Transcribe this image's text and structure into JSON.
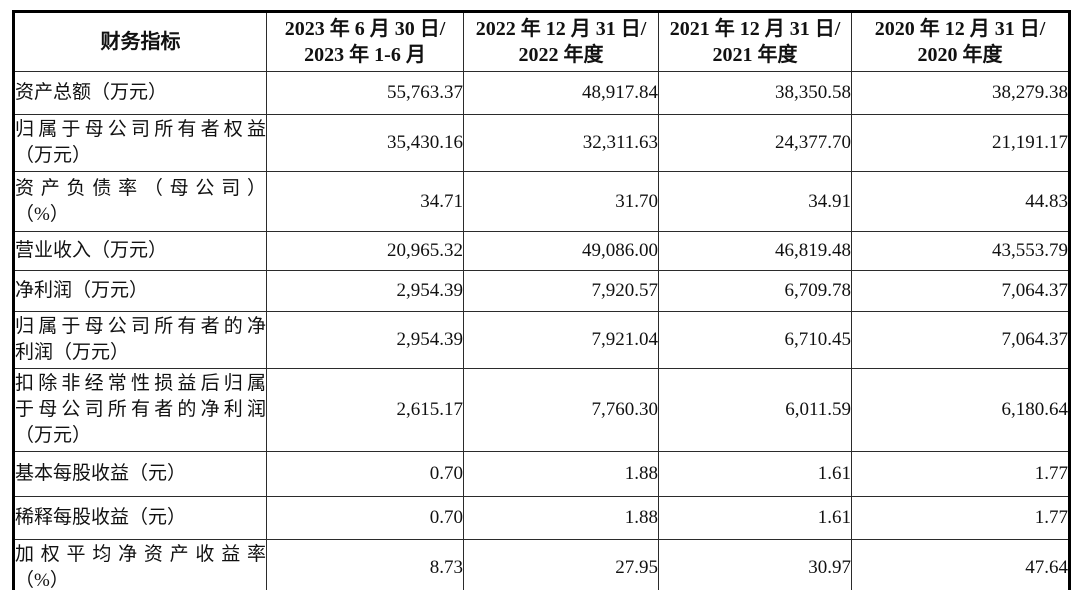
{
  "table": {
    "header": {
      "indicator_label": "财务指标",
      "periods": [
        {
          "line1": "2023 年 6 月 30 日/",
          "line2": "2023 年 1-6 月"
        },
        {
          "line1": "2022 年 12 月 31 日/",
          "line2": "2022 年度"
        },
        {
          "line1": "2021 年 12 月 31 日/",
          "line2": "2021 年度"
        },
        {
          "line1": "2020 年 12 月 31 日/",
          "line2": "2020 年度"
        }
      ]
    },
    "rows": [
      {
        "label_lines": [
          "资产总额（万元）"
        ],
        "values": [
          "55,763.37",
          "48,917.84",
          "38,350.58",
          "38,279.38"
        ]
      },
      {
        "label_lines": [
          "归属于母公司所有者权益",
          "（万元）"
        ],
        "values": [
          "35,430.16",
          "32,311.63",
          "24,377.70",
          "21,191.17"
        ]
      },
      {
        "label_lines": [
          "资产负债率（母公司）",
          "（%）"
        ],
        "values": [
          "34.71",
          "31.70",
          "34.91",
          "44.83"
        ]
      },
      {
        "label_lines": [
          "营业收入（万元）"
        ],
        "values": [
          "20,965.32",
          "49,086.00",
          "46,819.48",
          "43,553.79"
        ]
      },
      {
        "label_lines": [
          "净利润（万元）"
        ],
        "values": [
          "2,954.39",
          "7,920.57",
          "6,709.78",
          "7,064.37"
        ]
      },
      {
        "label_lines": [
          "归属于母公司所有者的净",
          "利润（万元）"
        ],
        "values": [
          "2,954.39",
          "7,921.04",
          "6,710.45",
          "7,064.37"
        ]
      },
      {
        "label_lines": [
          "扣除非经常性损益后归属",
          "于母公司所有者的净利润",
          "（万元）"
        ],
        "values": [
          "2,615.17",
          "7,760.30",
          "6,011.59",
          "6,180.64"
        ]
      },
      {
        "label_lines": [
          "基本每股收益（元）"
        ],
        "values": [
          "0.70",
          "1.88",
          "1.61",
          "1.77"
        ]
      },
      {
        "label_lines": [
          "稀释每股收益（元）"
        ],
        "values": [
          "0.70",
          "1.88",
          "1.61",
          "1.77"
        ]
      },
      {
        "label_lines": [
          "加权平均净资产收益率",
          "（%）"
        ],
        "values": [
          "8.73",
          "27.95",
          "30.97",
          "47.64"
        ]
      }
    ]
  },
  "colors": {
    "outer_border": "#000000",
    "inner_border": "#2b2b2b",
    "text": "#111111",
    "background": "#ffffff"
  }
}
